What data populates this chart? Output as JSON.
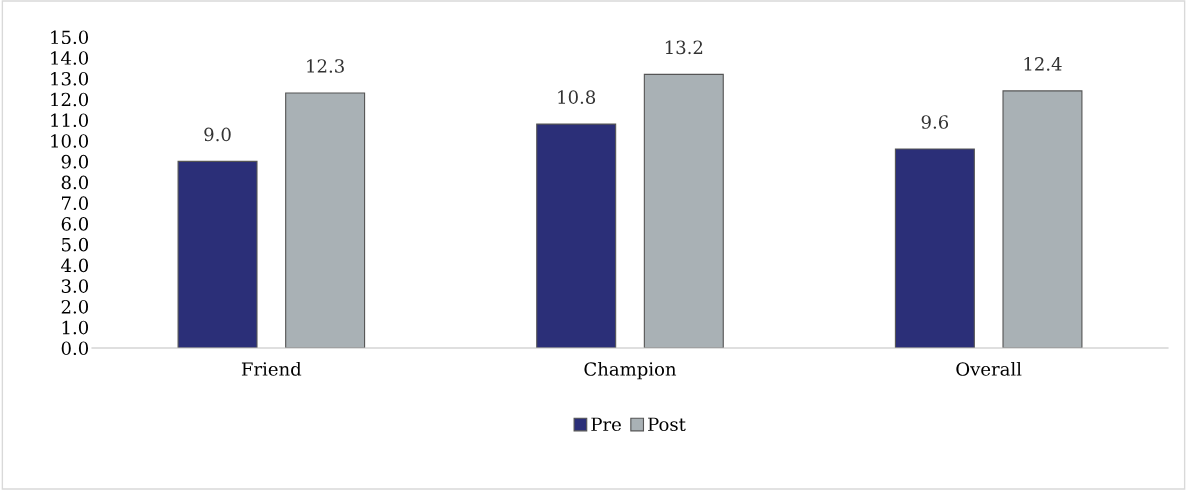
{
  "chart_data": {
    "type": "bar",
    "categories": [
      "Friend",
      "Champion",
      "Overall"
    ],
    "series": [
      {
        "name": "Pre",
        "color": "#2b2f78",
        "values": [
          9.0,
          10.8,
          9.6
        ],
        "value_labels": [
          "9.0",
          "10.8",
          "9.6"
        ]
      },
      {
        "name": "Post",
        "color": "#a9b1b5",
        "values": [
          12.3,
          13.2,
          12.4
        ],
        "value_labels": [
          "12.3",
          "13.2",
          "12.4"
        ]
      }
    ],
    "ylim": [
      0,
      15
    ],
    "yticks": [
      {
        "value": 0,
        "label": "0.0"
      },
      {
        "value": 1,
        "label": "1.0"
      },
      {
        "value": 2,
        "label": "2.0"
      },
      {
        "value": 3,
        "label": "3.0"
      },
      {
        "value": 4,
        "label": "4.0"
      },
      {
        "value": 5,
        "label": "5.0"
      },
      {
        "value": 6,
        "label": "6.0"
      },
      {
        "value": 7,
        "label": "7.0"
      },
      {
        "value": 8,
        "label": "8.0"
      },
      {
        "value": 9,
        "label": "9.0"
      },
      {
        "value": 10,
        "label": "10.0"
      },
      {
        "value": 11,
        "label": "11.0"
      },
      {
        "value": 12,
        "label": "12.0"
      },
      {
        "value": 13,
        "label": "13.0"
      },
      {
        "value": 14,
        "label": "14.0"
      },
      {
        "value": 15,
        "label": "15.0"
      }
    ],
    "grid": false,
    "legend": "bottom"
  }
}
